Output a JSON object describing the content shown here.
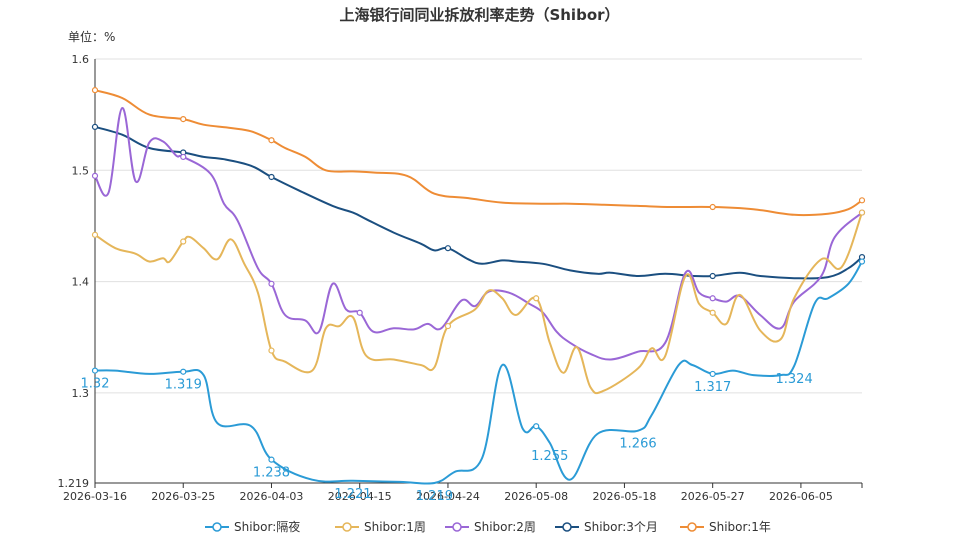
{
  "chart_data": {
    "type": "line",
    "title": "上海银行间同业拆放利率走势（Shibor）",
    "unit_label": "单位：%",
    "x_ticks": [
      "2026-03-16",
      "2026-03-25",
      "2026-04-03",
      "2026-04-15",
      "2026-04-24",
      "2026-05-08",
      "2026-05-18",
      "2026-05-27",
      "2026-06-05"
    ],
    "y_ticks": [
      "1.219",
      "1.3",
      "1.4",
      "1.5",
      "1.6"
    ],
    "ylim": [
      1.219,
      1.6
    ],
    "grid": true,
    "legend_position": "bottom",
    "series": [
      {
        "name": "Shibor:隔夜",
        "color": "#2b9bd6",
        "points": [
          [
            0,
            1.32
          ],
          [
            3,
            1.32
          ],
          [
            8,
            1.317
          ],
          [
            13,
            1.319
          ],
          [
            16,
            1.316
          ],
          [
            18,
            1.273
          ],
          [
            23,
            1.27
          ],
          [
            26,
            1.24
          ],
          [
            32,
            1.222
          ],
          [
            38,
            1.221
          ],
          [
            45,
            1.22
          ],
          [
            50,
            1.219
          ],
          [
            53,
            1.229
          ],
          [
            57,
            1.241
          ],
          [
            60,
            1.325
          ],
          [
            63,
            1.268
          ],
          [
            65,
            1.27
          ],
          [
            67,
            1.255
          ],
          [
            70,
            1.222
          ],
          [
            74,
            1.263
          ],
          [
            80,
            1.266
          ],
          [
            82,
            1.28
          ],
          [
            86,
            1.325
          ],
          [
            88,
            1.325
          ],
          [
            91,
            1.317
          ],
          [
            94,
            1.32
          ],
          [
            97,
            1.316
          ],
          [
            101,
            1.316
          ],
          [
            103,
            1.324
          ],
          [
            106,
            1.38
          ],
          [
            108,
            1.385
          ],
          [
            111,
            1.398
          ],
          [
            113,
            1.418
          ]
        ],
        "labels": [
          [
            0,
            "1.32"
          ],
          [
            13,
            "1.319"
          ],
          [
            26,
            "1.238"
          ],
          [
            38,
            "1.221"
          ],
          [
            50,
            "1.219"
          ],
          [
            67,
            "1.255"
          ],
          [
            80,
            "1.266"
          ],
          [
            91,
            "1.317"
          ],
          [
            103,
            "1.324"
          ]
        ]
      },
      {
        "name": "Shibor:1周",
        "color": "#e5b65a",
        "points": [
          [
            0,
            1.442
          ],
          [
            3,
            1.43
          ],
          [
            6,
            1.425
          ],
          [
            8,
            1.418
          ],
          [
            10,
            1.421
          ],
          [
            11,
            1.418
          ],
          [
            13,
            1.436
          ],
          [
            14,
            1.44
          ],
          [
            16,
            1.43
          ],
          [
            18,
            1.42
          ],
          [
            20,
            1.438
          ],
          [
            22,
            1.416
          ],
          [
            24,
            1.39
          ],
          [
            26,
            1.338
          ],
          [
            28,
            1.328
          ],
          [
            32,
            1.32
          ],
          [
            34,
            1.358
          ],
          [
            36,
            1.36
          ],
          [
            38,
            1.368
          ],
          [
            40,
            1.333
          ],
          [
            44,
            1.33
          ],
          [
            48,
            1.325
          ],
          [
            50,
            1.323
          ],
          [
            52,
            1.36
          ],
          [
            56,
            1.375
          ],
          [
            58,
            1.392
          ],
          [
            60,
            1.385
          ],
          [
            62,
            1.37
          ],
          [
            65,
            1.385
          ],
          [
            67,
            1.345
          ],
          [
            69,
            1.318
          ],
          [
            71,
            1.341
          ],
          [
            73,
            1.305
          ],
          [
            75,
            1.302
          ],
          [
            80,
            1.322
          ],
          [
            82,
            1.34
          ],
          [
            84,
            1.333
          ],
          [
            87,
            1.405
          ],
          [
            89,
            1.38
          ],
          [
            91,
            1.372
          ],
          [
            93,
            1.362
          ],
          [
            95,
            1.388
          ],
          [
            98,
            1.356
          ],
          [
            101,
            1.348
          ],
          [
            103,
            1.385
          ],
          [
            107,
            1.42
          ],
          [
            110,
            1.413
          ],
          [
            113,
            1.462
          ]
        ]
      },
      {
        "name": "Shibor:2周",
        "color": "#9a67d6",
        "points": [
          [
            0,
            1.495
          ],
          [
            2,
            1.48
          ],
          [
            4,
            1.556
          ],
          [
            6,
            1.49
          ],
          [
            8,
            1.525
          ],
          [
            10,
            1.526
          ],
          [
            12,
            1.513
          ],
          [
            13,
            1.512
          ],
          [
            17,
            1.497
          ],
          [
            19,
            1.47
          ],
          [
            21,
            1.455
          ],
          [
            24,
            1.412
          ],
          [
            26,
            1.398
          ],
          [
            28,
            1.37
          ],
          [
            31,
            1.365
          ],
          [
            33,
            1.355
          ],
          [
            35,
            1.398
          ],
          [
            37,
            1.375
          ],
          [
            39,
            1.372
          ],
          [
            41,
            1.355
          ],
          [
            44,
            1.358
          ],
          [
            47,
            1.357
          ],
          [
            49,
            1.362
          ],
          [
            51,
            1.358
          ],
          [
            54,
            1.383
          ],
          [
            56,
            1.378
          ],
          [
            58,
            1.391
          ],
          [
            61,
            1.39
          ],
          [
            64,
            1.38
          ],
          [
            66,
            1.372
          ],
          [
            68,
            1.355
          ],
          [
            70,
            1.345
          ],
          [
            73,
            1.335
          ],
          [
            76,
            1.33
          ],
          [
            80,
            1.337
          ],
          [
            84,
            1.345
          ],
          [
            87,
            1.408
          ],
          [
            89,
            1.39
          ],
          [
            91,
            1.385
          ],
          [
            93,
            1.382
          ],
          [
            95,
            1.387
          ],
          [
            98,
            1.37
          ],
          [
            101,
            1.358
          ],
          [
            103,
            1.382
          ],
          [
            107,
            1.405
          ],
          [
            109,
            1.44
          ],
          [
            113,
            1.462
          ]
        ]
      },
      {
        "name": "Shibor:3个月",
        "color": "#1b4f80",
        "points": [
          [
            0,
            1.539
          ],
          [
            4,
            1.532
          ],
          [
            8,
            1.52
          ],
          [
            13,
            1.516
          ],
          [
            16,
            1.512
          ],
          [
            19,
            1.51
          ],
          [
            23,
            1.504
          ],
          [
            26,
            1.494
          ],
          [
            30,
            1.482
          ],
          [
            35,
            1.468
          ],
          [
            38,
            1.462
          ],
          [
            40,
            1.456
          ],
          [
            44,
            1.444
          ],
          [
            48,
            1.434
          ],
          [
            50,
            1.428
          ],
          [
            52,
            1.43
          ],
          [
            55,
            1.42
          ],
          [
            57,
            1.416
          ],
          [
            60,
            1.419
          ],
          [
            62,
            1.418
          ],
          [
            66,
            1.416
          ],
          [
            70,
            1.41
          ],
          [
            74,
            1.407
          ],
          [
            76,
            1.408
          ],
          [
            80,
            1.405
          ],
          [
            84,
            1.407
          ],
          [
            88,
            1.405
          ],
          [
            91,
            1.405
          ],
          [
            95,
            1.408
          ],
          [
            98,
            1.405
          ],
          [
            103,
            1.403
          ],
          [
            108,
            1.404
          ],
          [
            111,
            1.412
          ],
          [
            113,
            1.422
          ]
        ]
      },
      {
        "name": "Shibor:1年",
        "color": "#ee8c35",
        "points": [
          [
            0,
            1.572
          ],
          [
            4,
            1.565
          ],
          [
            8,
            1.55
          ],
          [
            13,
            1.546
          ],
          [
            16,
            1.541
          ],
          [
            20,
            1.538
          ],
          [
            23,
            1.535
          ],
          [
            26,
            1.527
          ],
          [
            28,
            1.52
          ],
          [
            31,
            1.512
          ],
          [
            34,
            1.5
          ],
          [
            38,
            1.499
          ],
          [
            41,
            1.498
          ],
          [
            46,
            1.495
          ],
          [
            50,
            1.479
          ],
          [
            55,
            1.475
          ],
          [
            60,
            1.471
          ],
          [
            66,
            1.47
          ],
          [
            70,
            1.47
          ],
          [
            75,
            1.469
          ],
          [
            80,
            1.468
          ],
          [
            85,
            1.467
          ],
          [
            91,
            1.467
          ],
          [
            97,
            1.465
          ],
          [
            103,
            1.46
          ],
          [
            108,
            1.461
          ],
          [
            111,
            1.465
          ],
          [
            113,
            1.473
          ]
        ]
      }
    ]
  }
}
